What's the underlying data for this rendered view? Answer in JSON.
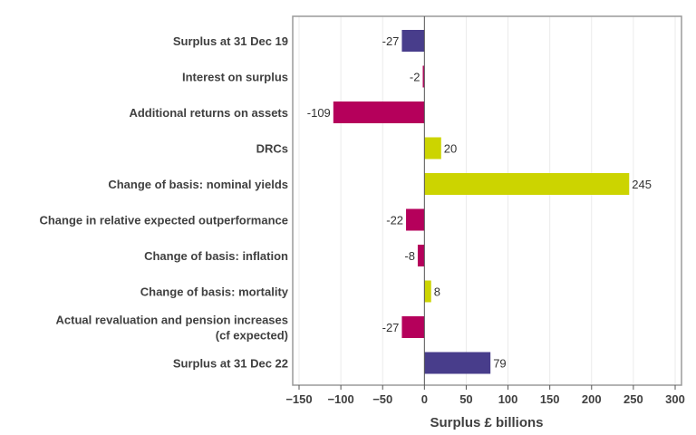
{
  "chart_data": {
    "type": "bar",
    "orientation": "horizontal",
    "title": "",
    "xlabel": "Surplus £ billions",
    "ylabel": "",
    "xlim": [
      -150,
      300
    ],
    "xticks": [
      -150,
      -100,
      -50,
      0,
      50,
      100,
      150,
      200,
      250,
      300
    ],
    "xtick_labels": [
      "−150",
      "−100",
      "−50",
      "0",
      "50",
      "100",
      "150",
      "200",
      "250",
      "300"
    ],
    "grid": true,
    "legend": "none",
    "categories": [
      [
        "Surplus at 31 Dec 19"
      ],
      [
        "Interest on surplus"
      ],
      [
        "Additional returns on assets"
      ],
      [
        "DRCs"
      ],
      [
        "Change of basis: nominal yields"
      ],
      [
        "Change in relative expected outperformance"
      ],
      [
        "Change of basis: inflation"
      ],
      [
        "Change of basis: mortality"
      ],
      [
        "Actual revaluation and pension increases",
        "(cf expected)"
      ],
      [
        "Surplus at 31 Dec 22"
      ]
    ],
    "values": [
      -27,
      -2,
      -109,
      20,
      245,
      -22,
      -8,
      8,
      -27,
      79
    ],
    "value_labels": [
      "-27",
      "-2",
      "-109",
      "20",
      "245",
      "-22",
      "-8",
      "8",
      "-27",
      "79"
    ],
    "colors": [
      "#483d8b",
      "#b5005b",
      "#b5005b",
      "#ccd400",
      "#ccd400",
      "#b5005b",
      "#b5005b",
      "#ccd400",
      "#b5005b",
      "#483d8b"
    ]
  }
}
